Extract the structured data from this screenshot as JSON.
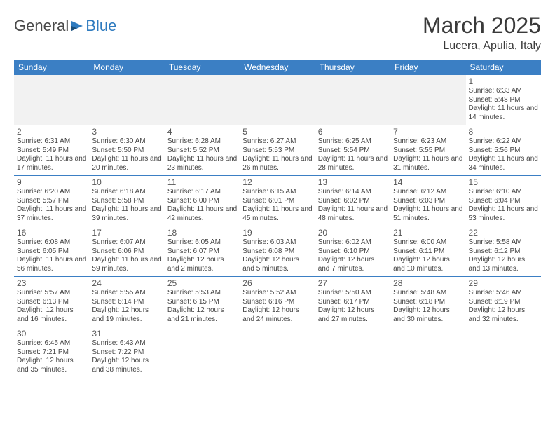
{
  "brand": {
    "part1": "General",
    "part2": "Blue"
  },
  "title": "March 2025",
  "location": "Lucera, Apulia, Italy",
  "colors": {
    "header_bg": "#3b7fc4",
    "header_text": "#ffffff",
    "cell_border": "#3b7fc4",
    "blank_bg": "#f2f2f2",
    "logo_gray": "#4a4a4a",
    "logo_blue": "#2f7bbf"
  },
  "weekdays": [
    "Sunday",
    "Monday",
    "Tuesday",
    "Wednesday",
    "Thursday",
    "Friday",
    "Saturday"
  ],
  "layout": {
    "first_weekday_index": 6,
    "days_in_month": 31
  },
  "days": {
    "1": {
      "sunrise": "6:33 AM",
      "sunset": "5:48 PM",
      "daylight": "11 hours and 14 minutes."
    },
    "2": {
      "sunrise": "6:31 AM",
      "sunset": "5:49 PM",
      "daylight": "11 hours and 17 minutes."
    },
    "3": {
      "sunrise": "6:30 AM",
      "sunset": "5:50 PM",
      "daylight": "11 hours and 20 minutes."
    },
    "4": {
      "sunrise": "6:28 AM",
      "sunset": "5:52 PM",
      "daylight": "11 hours and 23 minutes."
    },
    "5": {
      "sunrise": "6:27 AM",
      "sunset": "5:53 PM",
      "daylight": "11 hours and 26 minutes."
    },
    "6": {
      "sunrise": "6:25 AM",
      "sunset": "5:54 PM",
      "daylight": "11 hours and 28 minutes."
    },
    "7": {
      "sunrise": "6:23 AM",
      "sunset": "5:55 PM",
      "daylight": "11 hours and 31 minutes."
    },
    "8": {
      "sunrise": "6:22 AM",
      "sunset": "5:56 PM",
      "daylight": "11 hours and 34 minutes."
    },
    "9": {
      "sunrise": "6:20 AM",
      "sunset": "5:57 PM",
      "daylight": "11 hours and 37 minutes."
    },
    "10": {
      "sunrise": "6:18 AM",
      "sunset": "5:58 PM",
      "daylight": "11 hours and 39 minutes."
    },
    "11": {
      "sunrise": "6:17 AM",
      "sunset": "6:00 PM",
      "daylight": "11 hours and 42 minutes."
    },
    "12": {
      "sunrise": "6:15 AM",
      "sunset": "6:01 PM",
      "daylight": "11 hours and 45 minutes."
    },
    "13": {
      "sunrise": "6:14 AM",
      "sunset": "6:02 PM",
      "daylight": "11 hours and 48 minutes."
    },
    "14": {
      "sunrise": "6:12 AM",
      "sunset": "6:03 PM",
      "daylight": "11 hours and 51 minutes."
    },
    "15": {
      "sunrise": "6:10 AM",
      "sunset": "6:04 PM",
      "daylight": "11 hours and 53 minutes."
    },
    "16": {
      "sunrise": "6:08 AM",
      "sunset": "6:05 PM",
      "daylight": "11 hours and 56 minutes."
    },
    "17": {
      "sunrise": "6:07 AM",
      "sunset": "6:06 PM",
      "daylight": "11 hours and 59 minutes."
    },
    "18": {
      "sunrise": "6:05 AM",
      "sunset": "6:07 PM",
      "daylight": "12 hours and 2 minutes."
    },
    "19": {
      "sunrise": "6:03 AM",
      "sunset": "6:08 PM",
      "daylight": "12 hours and 5 minutes."
    },
    "20": {
      "sunrise": "6:02 AM",
      "sunset": "6:10 PM",
      "daylight": "12 hours and 7 minutes."
    },
    "21": {
      "sunrise": "6:00 AM",
      "sunset": "6:11 PM",
      "daylight": "12 hours and 10 minutes."
    },
    "22": {
      "sunrise": "5:58 AM",
      "sunset": "6:12 PM",
      "daylight": "12 hours and 13 minutes."
    },
    "23": {
      "sunrise": "5:57 AM",
      "sunset": "6:13 PM",
      "daylight": "12 hours and 16 minutes."
    },
    "24": {
      "sunrise": "5:55 AM",
      "sunset": "6:14 PM",
      "daylight": "12 hours and 19 minutes."
    },
    "25": {
      "sunrise": "5:53 AM",
      "sunset": "6:15 PM",
      "daylight": "12 hours and 21 minutes."
    },
    "26": {
      "sunrise": "5:52 AM",
      "sunset": "6:16 PM",
      "daylight": "12 hours and 24 minutes."
    },
    "27": {
      "sunrise": "5:50 AM",
      "sunset": "6:17 PM",
      "daylight": "12 hours and 27 minutes."
    },
    "28": {
      "sunrise": "5:48 AM",
      "sunset": "6:18 PM",
      "daylight": "12 hours and 30 minutes."
    },
    "29": {
      "sunrise": "5:46 AM",
      "sunset": "6:19 PM",
      "daylight": "12 hours and 32 minutes."
    },
    "30": {
      "sunrise": "6:45 AM",
      "sunset": "7:21 PM",
      "daylight": "12 hours and 35 minutes."
    },
    "31": {
      "sunrise": "6:43 AM",
      "sunset": "7:22 PM",
      "daylight": "12 hours and 38 minutes."
    }
  },
  "labels": {
    "sunrise": "Sunrise:",
    "sunset": "Sunset:",
    "daylight": "Daylight:"
  }
}
